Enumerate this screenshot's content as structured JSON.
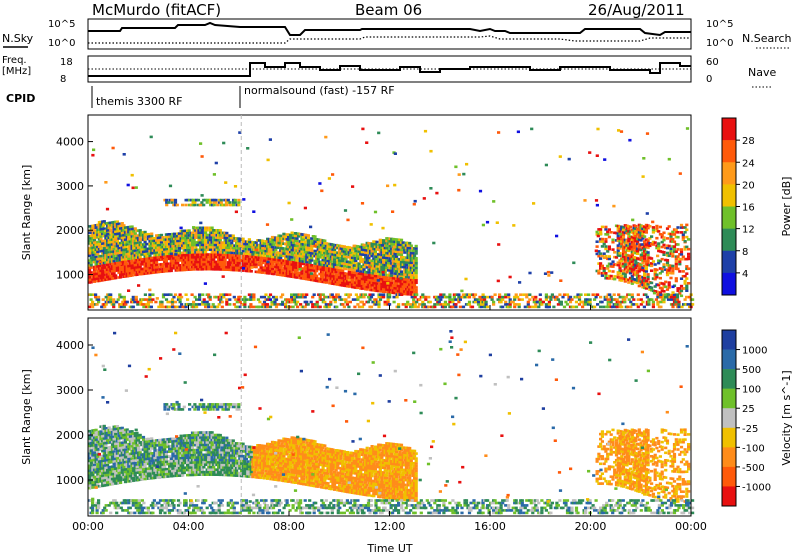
{
  "header": {
    "station": "McMurdo (fitACF)",
    "beam": "Beam 06",
    "date": "26/Aug/2011"
  },
  "summary_panels": {
    "nsky_label": "N.Sky",
    "nsearch_label": "N.Search",
    "nsky_ticks": [
      "10^5",
      "10^0"
    ],
    "nsearch_ticks": [
      "10^5",
      "10^0"
    ],
    "freq_label_line1": "Freq.",
    "freq_label_line2": "[MHz]",
    "freq_ticks": [
      "18",
      "8"
    ],
    "nave_label": "Nave",
    "nave_ticks": [
      "60",
      "0"
    ],
    "cpid_label": "CPID",
    "cpid_segments": [
      "themis 3300 RF",
      "normalsound (fast) -157 RF"
    ]
  },
  "colors": {
    "power_scale": [
      "#1010e0",
      "#1e40a8",
      "#2e8b57",
      "#6fc02a",
      "#f0c000",
      "#ff9a1a",
      "#ff5a0a",
      "#e81010"
    ],
    "velocity_scale": [
      "#1f3fa0",
      "#2a6aa8",
      "#2e8b57",
      "#6fc02a",
      "#c0c0c0",
      "#f0c000",
      "#ff8c1a",
      "#ff5a0a",
      "#e81010"
    ]
  },
  "chart_data": [
    {
      "type": "heatmap",
      "title": "Power",
      "ylabel": "Slant Range [km]",
      "xlabel": "",
      "x_ticks": [
        "00:00",
        "04:00",
        "08:00",
        "12:00",
        "16:00",
        "20:00",
        "00:00"
      ],
      "y_ticks": [
        1000,
        2000,
        3000,
        4000
      ],
      "ylim": [
        200,
        4600
      ],
      "colorbar_label": "Power [dB]",
      "colorbar_ticks": [
        4,
        8,
        12,
        16,
        20,
        24,
        28
      ]
    },
    {
      "type": "heatmap",
      "title": "Velocity",
      "ylabel": "Slant Range [km]",
      "xlabel": "Time UT",
      "x_ticks": [
        "00:00",
        "04:00",
        "08:00",
        "12:00",
        "16:00",
        "20:00",
        "00:00"
      ],
      "y_ticks": [
        1000,
        2000,
        3000,
        4000
      ],
      "ylim": [
        200,
        4600
      ],
      "colorbar_label": "Velocity [m s^-1]",
      "colorbar_ticks": [
        1000,
        500,
        100,
        25,
        -25,
        -100,
        -500,
        -1000
      ]
    }
  ]
}
